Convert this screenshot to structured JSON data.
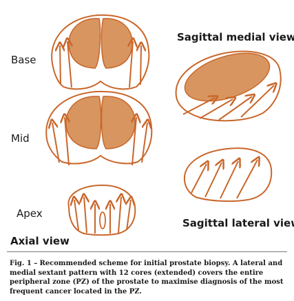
{
  "colors": {
    "outline": "#c9662a",
    "fill": "#d8955f",
    "line_dark": "#2b2b2b"
  },
  "labels": {
    "base": "Base",
    "mid": "Mid",
    "apex": "Apex",
    "axial_view": "Axial view",
    "sagittal_medial": "Sagittal medial view",
    "sagittal_lateral": "Sagittal lateral view"
  },
  "caption": {
    "fig_ref": "Fig. 1 –",
    "text": "Recommended scheme for initial prostate biopsy. A lateral and medial sextant pattern with 12 cores (extended) covers the entire peripheral zone (PZ) of the prostate to maximise diagnosis of the most frequent cancer located in the PZ."
  }
}
